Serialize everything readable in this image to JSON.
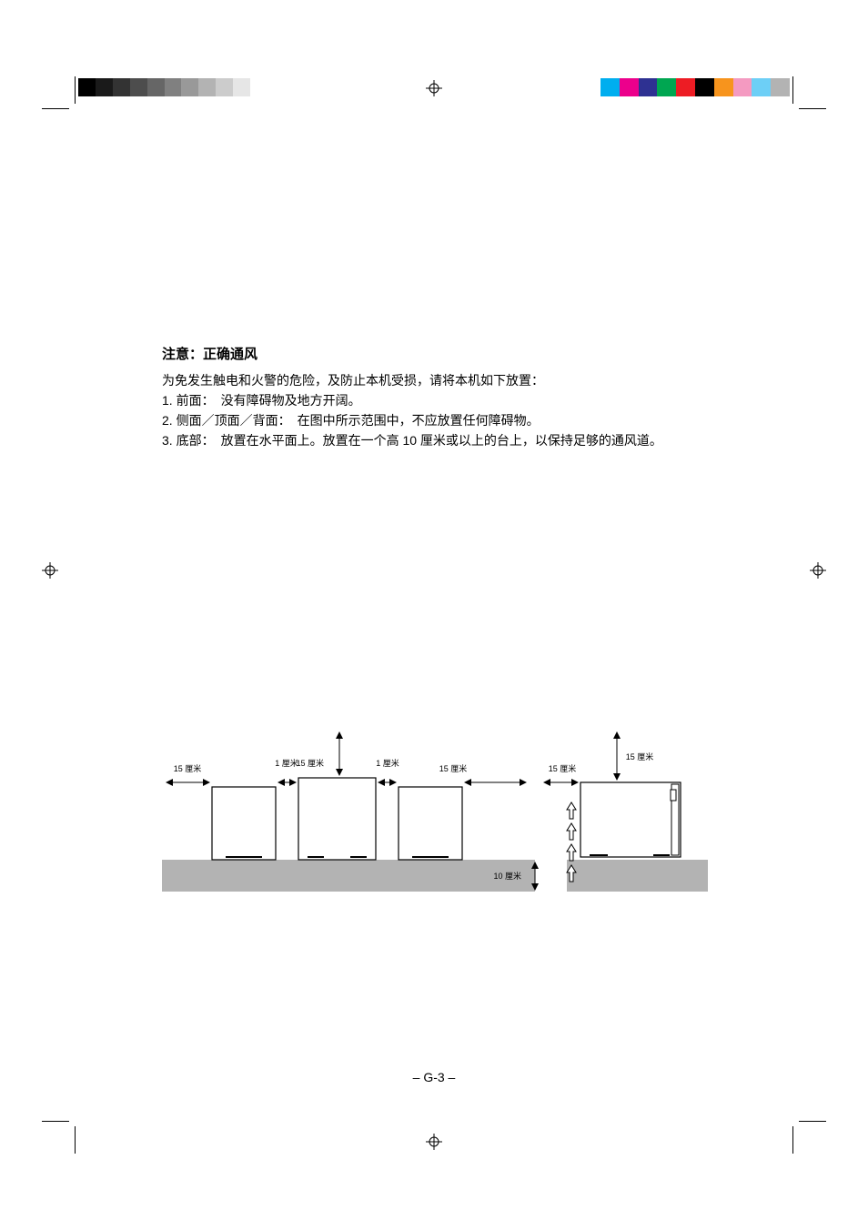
{
  "heading": "注意：正确通风",
  "intro": "为免发生触电和火警的危险，及防止本机受损，请将本机如下放置：",
  "items": [
    {
      "num": "1.",
      "label": "前面：",
      "text": "没有障碍物及地方开阔。"
    },
    {
      "num": "2.",
      "label": "侧面／顶面／背面：",
      "text": "在图中所示范围中，不应放置任何障碍物。"
    },
    {
      "num": "3.",
      "label": "底部：",
      "text": "放置在水平面上。放置在一个高 10 厘米或以上的台上，以保持足够的通风道。"
    }
  ],
  "diagram": {
    "labels": {
      "cm15": "15 厘米",
      "cm1": "1 厘米",
      "cm10": "10 厘米"
    },
    "colors": {
      "stroke": "#000000",
      "fill_platform": "#b3b3b3",
      "fill_speaker": "#ffffff",
      "bg": "#ffffff"
    },
    "stroke_width": 1.2
  },
  "page_number": "– G-3 –",
  "gray_swatches": [
    "#000000",
    "#1a1a1a",
    "#333333",
    "#4d4d4d",
    "#666666",
    "#808080",
    "#999999",
    "#b3b3b3",
    "#cccccc",
    "#e6e6e6",
    "#ffffff"
  ],
  "color_swatches": [
    "#00aeef",
    "#ec008c",
    "#2e3192",
    "#00a651",
    "#ed1c24",
    "#000000",
    "#f7941d",
    "#f49ac1",
    "#6dcff6",
    "#b3b3b3"
  ]
}
